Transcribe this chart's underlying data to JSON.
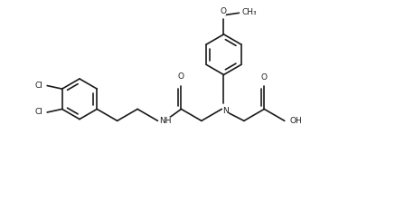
{
  "bg_color": "#ffffff",
  "line_color": "#1a1a1a",
  "line_width": 1.2,
  "font_size": 6.5,
  "figsize": [
    4.48,
    2.23
  ],
  "dpi": 100,
  "xlim": [
    0,
    10
  ],
  "ylim": [
    0,
    5
  ]
}
